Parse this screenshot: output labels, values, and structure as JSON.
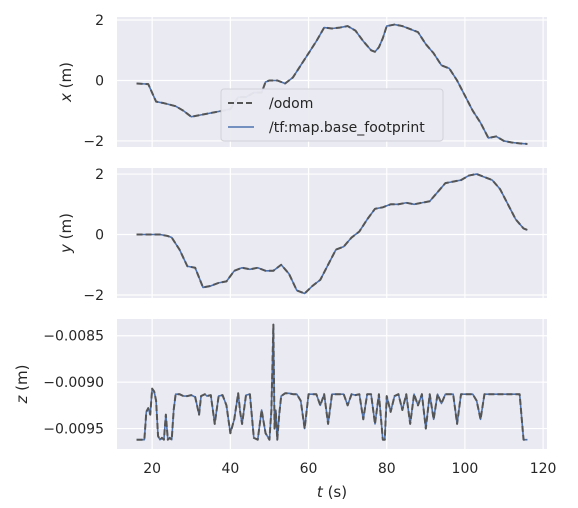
{
  "chart_data": [
    {
      "type": "line",
      "ylabel_var": "x",
      "ylabel_unit": " (m)",
      "xlim": [
        11,
        121
      ],
      "ylim": [
        -2.2,
        2.1
      ],
      "xticks": [
        20,
        40,
        60,
        80,
        100,
        120
      ],
      "yticks": [
        -2,
        0,
        2
      ],
      "ytick_labels": [
        "−2",
        "0",
        "2"
      ],
      "show_xtick_labels": false,
      "grid": true,
      "legend": {
        "placement": "center-left",
        "entries": [
          "/odom",
          "/tf:map.base_footprint"
        ]
      },
      "series": [
        {
          "name": "/odom",
          "style": "dashed",
          "color": "#555555",
          "x": [
            16,
            19,
            21,
            23,
            26,
            28,
            30,
            32,
            34,
            36,
            38,
            40,
            42,
            44,
            46,
            48,
            49,
            50,
            52,
            54,
            56,
            58,
            60,
            62,
            64,
            66,
            68,
            70,
            72,
            74,
            76,
            77,
            78,
            79,
            80,
            82,
            84,
            86,
            88,
            90,
            92,
            94,
            96,
            98,
            100,
            102,
            104,
            106,
            108,
            110,
            112,
            114,
            116
          ],
          "y": [
            -0.1,
            -0.12,
            -0.7,
            -0.75,
            -0.85,
            -1.0,
            -1.2,
            -1.15,
            -1.1,
            -1.05,
            -1.0,
            -0.95,
            -0.55,
            -0.55,
            -0.4,
            -0.4,
            -0.05,
            0.0,
            0.0,
            -0.1,
            0.1,
            0.5,
            0.9,
            1.3,
            1.75,
            1.72,
            1.75,
            1.8,
            1.65,
            1.3,
            1.0,
            0.95,
            1.1,
            1.4,
            1.8,
            1.85,
            1.8,
            1.7,
            1.6,
            1.2,
            0.9,
            0.5,
            0.4,
            0.0,
            -0.5,
            -1.0,
            -1.4,
            -1.9,
            -1.85,
            -2.0,
            -2.05,
            -2.08,
            -2.1
          ]
        },
        {
          "name": "/tf:map.base_footprint",
          "style": "solid",
          "color": "#4c72b0",
          "x": [
            16,
            19,
            21,
            23,
            26,
            28,
            30,
            32,
            34,
            36,
            38,
            40,
            42,
            44,
            46,
            48,
            49,
            50,
            52,
            54,
            56,
            58,
            60,
            62,
            64,
            66,
            68,
            70,
            72,
            74,
            76,
            77,
            78,
            79,
            80,
            82,
            84,
            86,
            88,
            90,
            92,
            94,
            96,
            98,
            100,
            102,
            104,
            106,
            108,
            110,
            112,
            114,
            116
          ],
          "y": [
            -0.1,
            -0.12,
            -0.7,
            -0.75,
            -0.85,
            -1.0,
            -1.2,
            -1.15,
            -1.1,
            -1.05,
            -1.0,
            -0.95,
            -0.55,
            -0.55,
            -0.4,
            -0.4,
            -0.05,
            0.0,
            0.0,
            -0.1,
            0.1,
            0.5,
            0.9,
            1.3,
            1.75,
            1.72,
            1.75,
            1.8,
            1.65,
            1.3,
            1.0,
            0.95,
            1.1,
            1.4,
            1.8,
            1.85,
            1.8,
            1.7,
            1.6,
            1.2,
            0.9,
            0.5,
            0.4,
            0.0,
            -0.5,
            -1.0,
            -1.4,
            -1.9,
            -1.85,
            -2.0,
            -2.05,
            -2.08,
            -2.1
          ]
        }
      ]
    },
    {
      "type": "line",
      "ylabel_var": "y",
      "ylabel_unit": " (m)",
      "xlim": [
        11,
        121
      ],
      "ylim": [
        -2.1,
        2.2
      ],
      "xticks": [
        20,
        40,
        60,
        80,
        100,
        120
      ],
      "yticks": [
        -2,
        0,
        2
      ],
      "ytick_labels": [
        "−2",
        "0",
        "2"
      ],
      "show_xtick_labels": false,
      "grid": true,
      "series": [
        {
          "name": "/odom",
          "style": "dashed",
          "color": "#555555",
          "x": [
            16,
            20,
            22,
            24,
            25,
            27,
            29,
            31,
            33,
            35,
            37,
            39,
            41,
            43,
            45,
            47,
            49,
            51,
            53,
            55,
            57,
            59,
            61,
            63,
            65,
            67,
            69,
            71,
            73,
            75,
            77,
            79,
            81,
            83,
            85,
            87,
            89,
            91,
            93,
            95,
            97,
            99,
            101,
            103,
            105,
            107,
            109,
            111,
            113,
            115,
            116
          ],
          "y": [
            0.0,
            0.0,
            0.0,
            -0.05,
            -0.1,
            -0.5,
            -1.05,
            -1.1,
            -1.75,
            -1.7,
            -1.6,
            -1.55,
            -1.2,
            -1.1,
            -1.15,
            -1.1,
            -1.2,
            -1.2,
            -1.0,
            -1.3,
            -1.85,
            -1.95,
            -1.7,
            -1.5,
            -1.0,
            -0.5,
            -0.4,
            -0.1,
            0.1,
            0.5,
            0.85,
            0.9,
            1.0,
            1.0,
            1.05,
            1.0,
            1.05,
            1.1,
            1.4,
            1.7,
            1.75,
            1.8,
            1.95,
            2.0,
            1.9,
            1.8,
            1.5,
            1.0,
            0.5,
            0.2,
            0.15
          ]
        },
        {
          "name": "/tf:map.base_footprint",
          "style": "solid",
          "color": "#4c72b0",
          "x": [
            16,
            20,
            22,
            24,
            25,
            27,
            29,
            31,
            33,
            35,
            37,
            39,
            41,
            43,
            45,
            47,
            49,
            51,
            53,
            55,
            57,
            59,
            61,
            63,
            65,
            67,
            69,
            71,
            73,
            75,
            77,
            79,
            81,
            83,
            85,
            87,
            89,
            91,
            93,
            95,
            97,
            99,
            101,
            103,
            105,
            107,
            109,
            111,
            113,
            115,
            116
          ],
          "y": [
            0.0,
            0.0,
            0.0,
            -0.05,
            -0.1,
            -0.5,
            -1.05,
            -1.1,
            -1.75,
            -1.7,
            -1.6,
            -1.55,
            -1.2,
            -1.1,
            -1.15,
            -1.1,
            -1.2,
            -1.2,
            -1.0,
            -1.3,
            -1.85,
            -1.95,
            -1.7,
            -1.5,
            -1.0,
            -0.5,
            -0.4,
            -0.1,
            0.1,
            0.5,
            0.85,
            0.9,
            1.0,
            1.0,
            1.05,
            1.0,
            1.05,
            1.1,
            1.4,
            1.7,
            1.75,
            1.8,
            1.95,
            2.0,
            1.9,
            1.8,
            1.5,
            1.0,
            0.5,
            0.2,
            0.15
          ]
        }
      ]
    },
    {
      "type": "line",
      "ylabel_var": "z",
      "ylabel_unit": " (m)",
      "xlim": [
        11,
        121
      ],
      "ylim": [
        -0.00972,
        -0.00832
      ],
      "xticks": [
        20,
        40,
        60,
        80,
        100,
        120
      ],
      "xtick_labels": [
        "20",
        "40",
        "60",
        "80",
        "100",
        "120"
      ],
      "yticks": [
        -0.0085,
        -0.009,
        -0.0095
      ],
      "ytick_labels": [
        "−0.0085",
        "−0.0090",
        "−0.0095"
      ],
      "show_xtick_labels": true,
      "xlabel_var": "t",
      "xlabel_unit": " (s)",
      "grid": true,
      "series": [
        {
          "name": "/odom",
          "style": "dashed",
          "color": "#555555",
          "x": [
            16,
            18,
            18.5,
            19,
            19.5,
            20,
            20.5,
            21,
            21.5,
            22,
            22.5,
            23,
            23.5,
            24,
            24.5,
            25,
            25.5,
            26,
            26.5,
            27,
            28,
            29,
            30,
            31,
            32,
            32.5,
            33,
            33.5,
            34,
            35,
            36,
            37,
            38,
            39,
            40,
            41,
            42,
            42.5,
            43,
            44,
            45,
            46,
            47,
            48,
            49,
            50,
            50.5,
            51,
            51.3,
            51.6,
            52,
            52.5,
            53,
            54,
            55,
            56,
            57,
            58,
            59,
            60,
            61,
            62,
            63,
            64,
            65,
            66,
            67,
            68,
            69,
            70,
            71,
            72,
            73,
            74,
            75,
            76,
            77,
            78,
            79,
            79.5,
            80,
            81,
            82,
            83,
            84,
            85,
            86,
            87,
            88,
            89,
            90,
            91,
            92,
            93,
            94,
            95,
            96,
            97,
            98,
            99,
            100,
            101,
            102,
            103,
            104,
            105,
            106,
            107,
            108,
            109,
            110,
            111,
            112,
            113,
            114,
            115,
            116
          ],
          "y": [
            -0.00962,
            -0.00962,
            -0.00932,
            -0.00928,
            -0.00935,
            -0.00907,
            -0.0091,
            -0.0092,
            -0.00958,
            -0.00962,
            -0.0096,
            -0.00962,
            -0.00935,
            -0.00962,
            -0.0096,
            -0.00962,
            -0.0093,
            -0.00913,
            -0.00913,
            -0.00913,
            -0.00915,
            -0.00915,
            -0.00914,
            -0.00916,
            -0.00935,
            -0.00915,
            -0.00914,
            -0.00913,
            -0.00915,
            -0.00914,
            -0.00945,
            -0.00915,
            -0.00914,
            -0.00925,
            -0.00955,
            -0.0094,
            -0.00912,
            -0.00932,
            -0.00945,
            -0.00914,
            -0.00913,
            -0.0096,
            -0.00962,
            -0.0093,
            -0.00955,
            -0.00962,
            -0.0093,
            -0.00838,
            -0.0095,
            -0.0093,
            -0.00962,
            -0.00935,
            -0.00915,
            -0.00912,
            -0.00912,
            -0.00913,
            -0.00913,
            -0.0092,
            -0.0095,
            -0.00913,
            -0.00913,
            -0.00913,
            -0.00925,
            -0.00913,
            -0.00945,
            -0.00913,
            -0.00913,
            -0.00913,
            -0.00913,
            -0.00925,
            -0.00913,
            -0.00914,
            -0.00913,
            -0.0094,
            -0.00913,
            -0.00913,
            -0.00945,
            -0.00913,
            -0.00962,
            -0.00962,
            -0.00915,
            -0.00932,
            -0.00915,
            -0.00913,
            -0.0093,
            -0.00913,
            -0.00945,
            -0.00913,
            -0.00925,
            -0.00913,
            -0.0095,
            -0.00913,
            -0.0094,
            -0.00913,
            -0.00923,
            -0.00913,
            -0.00913,
            -0.00913,
            -0.00945,
            -0.00913,
            -0.00913,
            -0.00913,
            -0.00913,
            -0.0092,
            -0.0094,
            -0.00913,
            -0.00913,
            -0.00913,
            -0.00913,
            -0.00913,
            -0.00913,
            -0.00913,
            -0.00913,
            -0.00913,
            -0.00913,
            -0.00962,
            -0.00962
          ]
        },
        {
          "name": "/tf:map.base_footprint",
          "style": "solid",
          "color": "#4c72b0",
          "x": [
            16,
            18,
            18.5,
            19,
            19.5,
            20,
            20.5,
            21,
            21.5,
            22,
            22.5,
            23,
            23.5,
            24,
            24.5,
            25,
            25.5,
            26,
            26.5,
            27,
            28,
            29,
            30,
            31,
            32,
            32.5,
            33,
            33.5,
            34,
            35,
            36,
            37,
            38,
            39,
            40,
            41,
            42,
            42.5,
            43,
            44,
            45,
            46,
            47,
            48,
            49,
            50,
            50.5,
            51,
            51.3,
            51.6,
            52,
            52.5,
            53,
            54,
            55,
            56,
            57,
            58,
            59,
            60,
            61,
            62,
            63,
            64,
            65,
            66,
            67,
            68,
            69,
            70,
            71,
            72,
            73,
            74,
            75,
            76,
            77,
            78,
            79,
            79.5,
            80,
            81,
            82,
            83,
            84,
            85,
            86,
            87,
            88,
            89,
            90,
            91,
            92,
            93,
            94,
            95,
            96,
            97,
            98,
            99,
            100,
            101,
            102,
            103,
            104,
            105,
            106,
            107,
            108,
            109,
            110,
            111,
            112,
            113,
            114,
            115,
            116
          ],
          "y": [
            -0.00962,
            -0.00962,
            -0.00932,
            -0.00928,
            -0.00935,
            -0.00907,
            -0.0091,
            -0.0092,
            -0.00958,
            -0.00962,
            -0.0096,
            -0.00962,
            -0.00935,
            -0.00962,
            -0.0096,
            -0.00962,
            -0.0093,
            -0.00913,
            -0.00913,
            -0.00913,
            -0.00915,
            -0.00915,
            -0.00914,
            -0.00916,
            -0.00935,
            -0.00915,
            -0.00914,
            -0.00913,
            -0.00915,
            -0.00914,
            -0.00945,
            -0.00915,
            -0.00914,
            -0.00925,
            -0.00955,
            -0.0094,
            -0.00912,
            -0.00932,
            -0.00945,
            -0.00914,
            -0.00913,
            -0.0096,
            -0.00962,
            -0.0093,
            -0.00955,
            -0.00962,
            -0.0093,
            -0.00838,
            -0.0095,
            -0.0093,
            -0.00962,
            -0.00935,
            -0.00915,
            -0.00912,
            -0.00912,
            -0.00913,
            -0.00913,
            -0.0092,
            -0.0095,
            -0.00913,
            -0.00913,
            -0.00913,
            -0.00925,
            -0.00913,
            -0.00945,
            -0.00913,
            -0.00913,
            -0.00913,
            -0.00913,
            -0.00925,
            -0.00913,
            -0.00914,
            -0.00913,
            -0.0094,
            -0.00913,
            -0.00913,
            -0.00945,
            -0.00913,
            -0.00962,
            -0.00962,
            -0.00915,
            -0.00932,
            -0.00915,
            -0.00913,
            -0.0093,
            -0.00913,
            -0.00945,
            -0.00913,
            -0.00925,
            -0.00913,
            -0.0095,
            -0.00913,
            -0.0094,
            -0.00913,
            -0.00923,
            -0.00913,
            -0.00913,
            -0.00913,
            -0.00945,
            -0.00913,
            -0.00913,
            -0.00913,
            -0.00913,
            -0.0092,
            -0.0094,
            -0.00913,
            -0.00913,
            -0.00913,
            -0.00913,
            -0.00913,
            -0.00913,
            -0.00913,
            -0.00913,
            -0.00913,
            -0.00913,
            -0.00962,
            -0.00962
          ]
        }
      ]
    }
  ]
}
